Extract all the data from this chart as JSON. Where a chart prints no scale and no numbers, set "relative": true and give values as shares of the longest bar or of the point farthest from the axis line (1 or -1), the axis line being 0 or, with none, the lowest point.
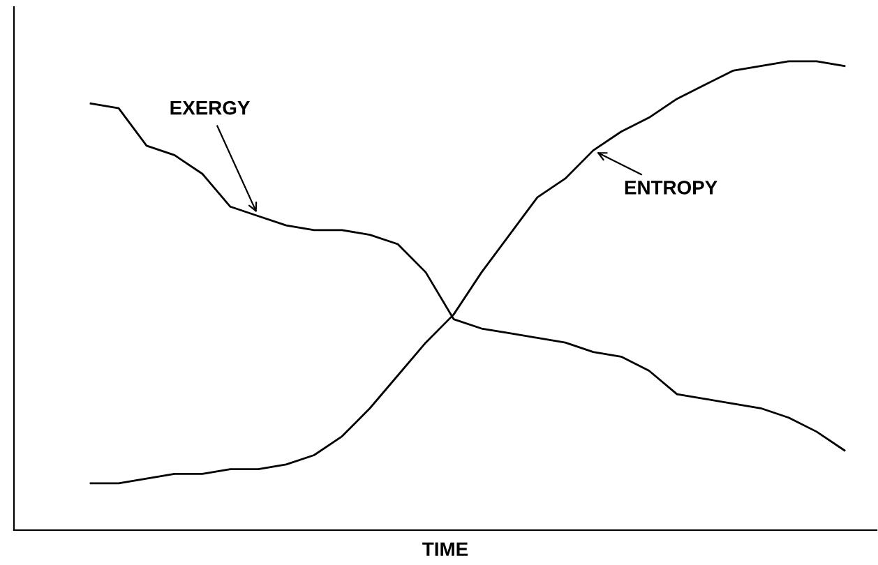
{
  "chart_data": {
    "type": "line",
    "relative": true,
    "xlabel": "TIME",
    "marker": "none",
    "line_style": "solid",
    "categories": [
      null,
      null,
      null,
      null,
      null,
      null,
      null,
      null,
      null,
      null,
      null,
      null,
      null,
      null,
      null,
      null,
      null,
      null,
      null,
      null,
      null,
      null,
      null,
      null,
      null,
      null,
      null,
      null
    ],
    "series": [
      {
        "name": "EXERGY",
        "color": "#000000",
        "values": [
          0.91,
          0.9,
          0.82,
          0.8,
          0.76,
          0.69,
          0.67,
          0.65,
          0.64,
          0.64,
          0.63,
          0.61,
          0.55,
          0.45,
          0.43,
          0.42,
          0.41,
          0.4,
          0.38,
          0.37,
          0.34,
          0.29,
          0.28,
          0.27,
          0.26,
          0.24,
          0.21,
          0.17
        ]
      },
      {
        "name": "ENTROPY",
        "color": "#000000",
        "values": [
          0.1,
          0.1,
          0.11,
          0.12,
          0.12,
          0.13,
          0.13,
          0.14,
          0.16,
          0.2,
          0.26,
          0.33,
          0.4,
          0.46,
          0.55,
          0.63,
          0.71,
          0.75,
          0.81,
          0.85,
          0.88,
          0.92,
          0.95,
          0.98,
          0.99,
          1,
          1,
          0.99
        ]
      }
    ]
  }
}
